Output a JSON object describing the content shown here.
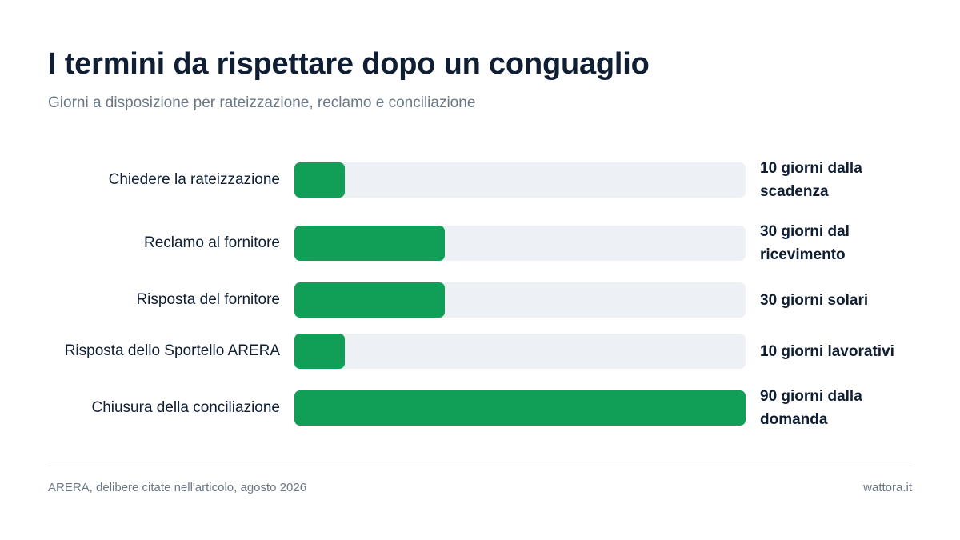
{
  "header": {
    "title": "I termini da rispettare dopo un conguaglio",
    "subtitle": "Giorni a disposizione per rateizzazione, reclamo e conciliazione"
  },
  "chart_data": {
    "type": "bar",
    "orientation": "horizontal",
    "categories": [
      "Chiedere la rateizzazione",
      "Reclamo al fornitore",
      "Risposta del fornitore",
      "Risposta dello Sportello ARERA",
      "Chiusura della conciliazione"
    ],
    "values": [
      10,
      30,
      30,
      10,
      90
    ],
    "value_labels": [
      "10 giorni dalla scadenza",
      "30 giorni dal ricevimento",
      "30 giorni solari",
      "10 giorni lavorativi",
      "90 giorni dalla domanda"
    ],
    "xlim": [
      0,
      90
    ],
    "grid": false,
    "legend": "none",
    "colors": {
      "bar": "#119f57",
      "track": "#edf0f4"
    }
  },
  "footer": {
    "source": "ARERA, delibere citate nell'articolo, agosto 2026",
    "brand": "wattora.it"
  }
}
